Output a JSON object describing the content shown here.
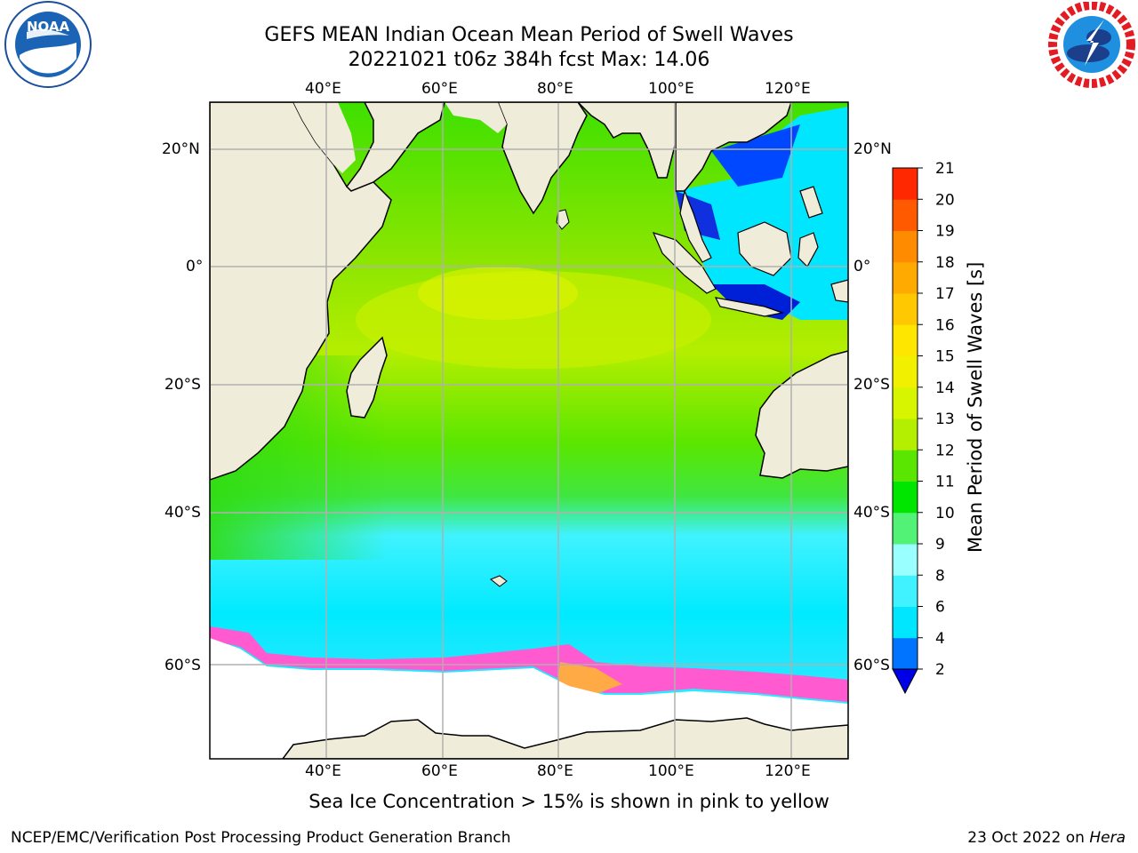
{
  "title": {
    "line1": "GEFS MEAN Indian Ocean Mean Period of Swell Waves",
    "line2": "20221021 t06z 384h fcst   Max: 14.06"
  },
  "logos": {
    "noaa_text": "NOAA",
    "noaa_ring": "NATIONAL OCEANIC AND ATMOSPHERIC ADMINISTRATION · U.S. DEPARTMENT OF COMMERCE ·",
    "nws_ring": "NATIONAL WEATHER SERVICE"
  },
  "axes": {
    "lon_labels": [
      "40°E",
      "60°E",
      "80°E",
      "100°E",
      "120°E"
    ],
    "lat_labels": [
      "20°N",
      "0°",
      "20°S",
      "40°S",
      "60°S"
    ]
  },
  "colorbar": {
    "title": "Mean Period of Swell Waves [s]",
    "ticks": [
      "2",
      "4",
      "6",
      "8",
      "9",
      "10",
      "11",
      "12",
      "13",
      "14",
      "15",
      "16",
      "17",
      "18",
      "19",
      "20",
      "21"
    ],
    "colors": [
      "#0073ff",
      "#00e6ff",
      "#40f2ff",
      "#99ffff",
      "#52f276",
      "#00e600",
      "#5ae600",
      "#b4ee00",
      "#d8f500",
      "#f0f000",
      "#ffe600",
      "#ffc800",
      "#ffaa00",
      "#ff8c00",
      "#ff5a00",
      "#ff2800"
    ],
    "under_color": "#0000e6"
  },
  "caption": "Sea Ice Concentration > 15% is shown in pink to yellow",
  "footer": {
    "left": "NCEP/EMC/Verification Post Processing Product Generation Branch",
    "right_prefix": "23 Oct 2022 on ",
    "right_host": "Hera"
  }
}
